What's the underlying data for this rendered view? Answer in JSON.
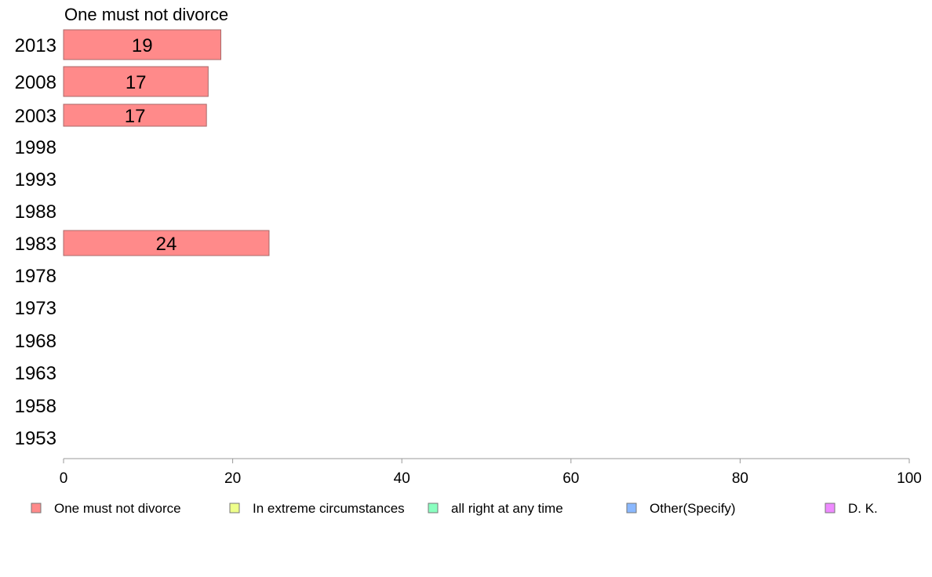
{
  "chart_data": {
    "type": "bar",
    "orientation": "horizontal",
    "title": "One must not divorce",
    "categories": [
      "2013",
      "2008",
      "2003",
      "1998",
      "1993",
      "1988",
      "1983",
      "1978",
      "1973",
      "1968",
      "1963",
      "1958",
      "1953"
    ],
    "series": [
      {
        "name": "One must not divorce",
        "values": [
          18.6,
          17.1,
          16.9,
          null,
          null,
          null,
          24.3,
          null,
          null,
          null,
          null,
          null,
          null
        ]
      }
    ],
    "data_labels": [
      "19",
      "17",
      "17",
      "",
      "",
      "",
      "24",
      "",
      "",
      "",
      "",
      "",
      ""
    ],
    "xlim": [
      0,
      100
    ],
    "xticks": [
      0,
      20,
      40,
      60,
      80,
      100
    ],
    "xlabel": "",
    "ylabel": "",
    "grid": false,
    "legend": {
      "position": "bottom",
      "entries": [
        {
          "label": "One must not divorce",
          "color": "#ff8a8a"
        },
        {
          "label": "In extreme circumstances",
          "color": "#eeff8a"
        },
        {
          "label": "all right at any time",
          "color": "#8affc0"
        },
        {
          "label": "Other(Specify)",
          "color": "#8ab8ff"
        },
        {
          "label": "D. K.",
          "color": "#ee8aff"
        }
      ]
    },
    "colors": {
      "bar_fill": "#ff8a8a",
      "bar_stroke": "#a86a6a",
      "axis": "#999999"
    }
  }
}
